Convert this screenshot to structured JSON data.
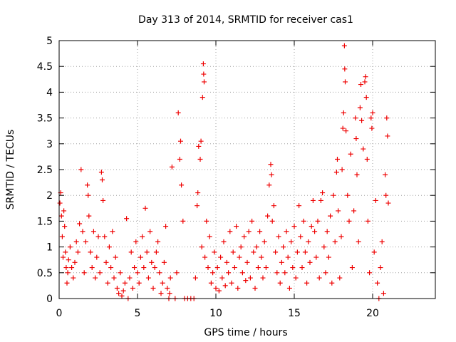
{
  "chart_data": {
    "type": "scatter",
    "title": "Day 313 of 2014, SRMTID for receiver cas1",
    "xlabel": "GPS time / hours",
    "ylabel": "SRMTID / TECUs",
    "xlim": [
      0,
      24
    ],
    "ylim": [
      0,
      5
    ],
    "x_ticks": [
      0,
      5,
      10,
      15,
      20
    ],
    "x_tick_labels": [
      "0",
      "5",
      "10",
      "15",
      "20"
    ],
    "y_ticks": [
      0,
      0.5,
      1,
      1.5,
      2,
      2.5,
      3,
      3.5,
      4,
      4.5,
      5
    ],
    "y_tick_labels": [
      "0",
      "0.5",
      "1",
      "1.5",
      "2",
      "2.5",
      "3",
      "3.5",
      "4",
      "4.5",
      "5"
    ],
    "grid": true,
    "marker": "+",
    "colors": {
      "series": "#ee0000",
      "grid": "#a0a0a0",
      "axis": "#000000"
    },
    "series": [
      {
        "name": "SRMTID",
        "points": [
          [
            0.05,
            1.85
          ],
          [
            0.1,
            2.05
          ],
          [
            0.15,
            1.6
          ],
          [
            0.2,
            1.2
          ],
          [
            0.25,
            0.8
          ],
          [
            0.3,
            1.7
          ],
          [
            0.35,
            1.4
          ],
          [
            0.4,
            0.9
          ],
          [
            0.45,
            0.6
          ],
          [
            0.5,
            0.3
          ],
          [
            0.55,
            0.5
          ],
          [
            0.6,
            0.75
          ],
          [
            0.7,
            1.0
          ],
          [
            0.8,
            0.6
          ],
          [
            0.9,
            0.4
          ],
          [
            1.0,
            0.7
          ],
          [
            1.1,
            1.1
          ],
          [
            1.2,
            0.9
          ],
          [
            1.3,
            1.45
          ],
          [
            1.4,
            2.5
          ],
          [
            1.5,
            1.3
          ],
          [
            1.6,
            0.5
          ],
          [
            1.7,
            1.1
          ],
          [
            1.8,
            2.2
          ],
          [
            1.85,
            2.0
          ],
          [
            1.9,
            1.6
          ],
          [
            2.0,
            0.9
          ],
          [
            2.1,
            0.6
          ],
          [
            2.2,
            1.3
          ],
          [
            2.3,
            0.4
          ],
          [
            2.4,
            0.8
          ],
          [
            2.5,
            1.2
          ],
          [
            2.6,
            0.5
          ],
          [
            2.7,
            2.45
          ],
          [
            2.75,
            2.3
          ],
          [
            2.8,
            1.9
          ],
          [
            2.9,
            1.2
          ],
          [
            3.0,
            0.7
          ],
          [
            3.1,
            0.3
          ],
          [
            3.2,
            1.0
          ],
          [
            3.3,
            0.6
          ],
          [
            3.4,
            1.3
          ],
          [
            3.5,
            0.4
          ],
          [
            3.6,
            0.8
          ],
          [
            3.7,
            0.2
          ],
          [
            3.8,
            0.1
          ],
          [
            3.9,
            0.5
          ],
          [
            4.0,
            0.05
          ],
          [
            4.1,
            0.15
          ],
          [
            4.2,
            0.3
          ],
          [
            4.3,
            1.55
          ],
          [
            4.4,
            0.0
          ],
          [
            4.5,
            0.4
          ],
          [
            4.6,
            0.9
          ],
          [
            4.7,
            0.2
          ],
          [
            4.8,
            0.6
          ],
          [
            4.9,
            1.1
          ],
          [
            5.0,
            0.5
          ],
          [
            5.1,
            0.3
          ],
          [
            5.2,
            0.8
          ],
          [
            5.3,
            1.2
          ],
          [
            5.4,
            0.6
          ],
          [
            5.5,
            1.75
          ],
          [
            5.6,
            0.9
          ],
          [
            5.7,
            0.4
          ],
          [
            5.8,
            1.3
          ],
          [
            5.9,
            0.7
          ],
          [
            6.0,
            0.2
          ],
          [
            6.1,
            0.6
          ],
          [
            6.2,
            0.9
          ],
          [
            6.3,
            1.1
          ],
          [
            6.4,
            0.5
          ],
          [
            6.5,
            0.1
          ],
          [
            6.6,
            0.3
          ],
          [
            6.7,
            0.7
          ],
          [
            6.8,
            1.4
          ],
          [
            6.9,
            0.2
          ],
          [
            7.0,
            0.0
          ],
          [
            7.05,
            0.1
          ],
          [
            7.1,
            0.4
          ],
          [
            7.2,
            2.55
          ],
          [
            7.4,
            0.0
          ],
          [
            7.5,
            0.5
          ],
          [
            7.6,
            3.6
          ],
          [
            7.7,
            2.7
          ],
          [
            7.75,
            3.05
          ],
          [
            7.8,
            2.2
          ],
          [
            7.9,
            1.5
          ],
          [
            8.0,
            0.0
          ],
          [
            8.2,
            0.0
          ],
          [
            8.4,
            0.0
          ],
          [
            8.6,
            0.0
          ],
          [
            8.7,
            0.4
          ],
          [
            8.8,
            1.8
          ],
          [
            8.85,
            2.05
          ],
          [
            8.9,
            2.95
          ],
          [
            9.0,
            2.7
          ],
          [
            9.05,
            3.05
          ],
          [
            9.1,
            1.0
          ],
          [
            9.15,
            3.9
          ],
          [
            9.2,
            4.55
          ],
          [
            9.22,
            4.35
          ],
          [
            9.25,
            4.2
          ],
          [
            9.3,
            0.8
          ],
          [
            9.4,
            1.5
          ],
          [
            9.5,
            0.6
          ],
          [
            9.6,
            1.2
          ],
          [
            9.7,
            0.3
          ],
          [
            9.8,
            0.5
          ],
          [
            9.9,
            0.9
          ],
          [
            10.0,
            0.2
          ],
          [
            10.1,
            0.6
          ],
          [
            10.2,
            0.15
          ],
          [
            10.3,
            0.8
          ],
          [
            10.4,
            0.4
          ],
          [
            10.5,
            1.1
          ],
          [
            10.6,
            0.25
          ],
          [
            10.7,
            0.7
          ],
          [
            10.8,
            0.5
          ],
          [
            10.9,
            1.3
          ],
          [
            11.0,
            0.3
          ],
          [
            11.1,
            0.9
          ],
          [
            11.2,
            0.6
          ],
          [
            11.3,
            1.4
          ],
          [
            11.4,
            0.2
          ],
          [
            11.5,
            0.8
          ],
          [
            11.6,
            1.0
          ],
          [
            11.7,
            0.5
          ],
          [
            11.8,
            1.2
          ],
          [
            11.9,
            0.35
          ],
          [
            12.0,
            0.7
          ],
          [
            12.1,
            1.3
          ],
          [
            12.2,
            0.4
          ],
          [
            12.3,
            1.5
          ],
          [
            12.4,
            0.9
          ],
          [
            12.5,
            0.2
          ],
          [
            12.6,
            1.0
          ],
          [
            12.7,
            0.6
          ],
          [
            12.8,
            1.3
          ],
          [
            12.9,
            0.8
          ],
          [
            13.0,
            0.4
          ],
          [
            13.1,
            1.1
          ],
          [
            13.2,
            0.6
          ],
          [
            13.3,
            1.6
          ],
          [
            13.4,
            2.2
          ],
          [
            13.5,
            2.6
          ],
          [
            13.55,
            2.4
          ],
          [
            13.6,
            1.5
          ],
          [
            13.7,
            1.8
          ],
          [
            13.8,
            0.9
          ],
          [
            13.9,
            0.5
          ],
          [
            14.0,
            1.2
          ],
          [
            14.1,
            0.3
          ],
          [
            14.2,
            0.7
          ],
          [
            14.3,
            1.0
          ],
          [
            14.4,
            0.5
          ],
          [
            14.5,
            1.3
          ],
          [
            14.6,
            0.8
          ],
          [
            14.7,
            0.2
          ],
          [
            14.8,
            1.1
          ],
          [
            14.9,
            0.6
          ],
          [
            15.0,
            1.4
          ],
          [
            15.1,
            0.4
          ],
          [
            15.2,
            0.9
          ],
          [
            15.3,
            1.8
          ],
          [
            15.4,
            1.2
          ],
          [
            15.5,
            0.6
          ],
          [
            15.6,
            1.5
          ],
          [
            15.7,
            0.9
          ],
          [
            15.8,
            0.3
          ],
          [
            15.9,
            1.1
          ],
          [
            16.0,
            0.7
          ],
          [
            16.1,
            1.4
          ],
          [
            16.2,
            1.9
          ],
          [
            16.3,
            1.3
          ],
          [
            16.4,
            0.8
          ],
          [
            16.5,
            1.5
          ],
          [
            16.6,
            0.4
          ],
          [
            16.7,
            1.9
          ],
          [
            16.8,
            2.05
          ],
          [
            16.9,
            1.0
          ],
          [
            17.0,
            0.5
          ],
          [
            17.1,
            1.3
          ],
          [
            17.2,
            0.8
          ],
          [
            17.3,
            1.6
          ],
          [
            17.4,
            0.3
          ],
          [
            17.5,
            2.0
          ],
          [
            17.6,
            1.1
          ],
          [
            17.7,
            2.45
          ],
          [
            17.75,
            2.7
          ],
          [
            17.8,
            1.7
          ],
          [
            17.9,
            0.4
          ],
          [
            18.0,
            1.2
          ],
          [
            18.05,
            2.5
          ],
          [
            18.1,
            3.3
          ],
          [
            18.15,
            3.6
          ],
          [
            18.2,
            4.9
          ],
          [
            18.22,
            4.45
          ],
          [
            18.25,
            4.2
          ],
          [
            18.3,
            3.25
          ],
          [
            18.4,
            2.0
          ],
          [
            18.5,
            1.5
          ],
          [
            18.6,
            2.8
          ],
          [
            18.7,
            0.6
          ],
          [
            18.8,
            1.7
          ],
          [
            18.9,
            3.5
          ],
          [
            18.95,
            3.1
          ],
          [
            19.0,
            2.4
          ],
          [
            19.1,
            1.1
          ],
          [
            19.2,
            3.7
          ],
          [
            19.25,
            4.15
          ],
          [
            19.3,
            3.45
          ],
          [
            19.4,
            2.9
          ],
          [
            19.5,
            4.2
          ],
          [
            19.55,
            4.3
          ],
          [
            19.6,
            3.9
          ],
          [
            19.65,
            2.7
          ],
          [
            19.7,
            1.5
          ],
          [
            19.8,
            0.5
          ],
          [
            19.9,
            3.5
          ],
          [
            19.95,
            3.3
          ],
          [
            20.0,
            3.6
          ],
          [
            20.1,
            0.9
          ],
          [
            20.2,
            1.9
          ],
          [
            20.3,
            0.3
          ],
          [
            20.4,
            0.0
          ],
          [
            20.5,
            0.6
          ],
          [
            20.6,
            1.1
          ],
          [
            20.7,
            0.1
          ],
          [
            20.8,
            2.4
          ],
          [
            20.85,
            2.0
          ],
          [
            20.9,
            3.5
          ],
          [
            20.95,
            3.15
          ],
          [
            21.0,
            1.85
          ]
        ]
      }
    ]
  }
}
